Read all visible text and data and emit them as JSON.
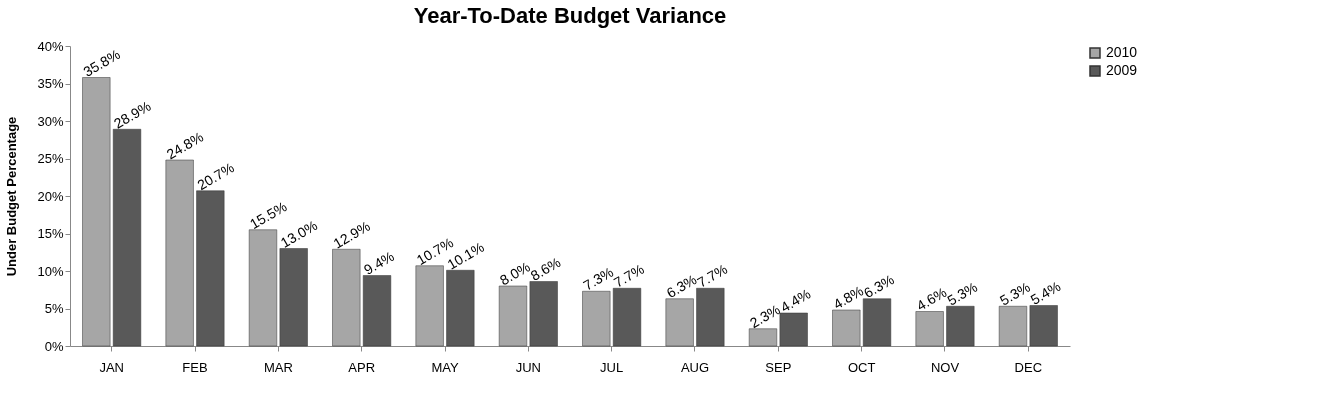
{
  "chart_data": {
    "type": "bar",
    "title": "Year-To-Date Budget Variance",
    "ylabel": "Under Budget Percentage",
    "categories": [
      "JAN",
      "FEB",
      "MAR",
      "APR",
      "MAY",
      "JUN",
      "JUL",
      "AUG",
      "SEP",
      "OCT",
      "NOV",
      "DEC"
    ],
    "series": [
      {
        "name": "2010",
        "color": "#a6a6a6",
        "values": [
          35.8,
          24.8,
          15.5,
          12.9,
          10.7,
          8.0,
          7.3,
          6.3,
          2.3,
          4.8,
          4.6,
          5.3
        ],
        "value_labels": [
          "35.8%",
          "24.8%",
          "15.5%",
          "12.9%",
          "10.7%",
          "8.0%",
          "7.3%",
          "6.3%",
          "2.3%",
          "4.8%",
          "4.6%",
          "5.3%"
        ]
      },
      {
        "name": "2009",
        "color": "#595959",
        "values": [
          28.9,
          20.7,
          13.0,
          9.4,
          10.1,
          8.6,
          7.7,
          7.7,
          4.4,
          6.3,
          5.3,
          5.4
        ],
        "value_labels": [
          "28.9%",
          "20.7%",
          "13.0%",
          "9.4%",
          "10.1%",
          "8.6%",
          "7.7%",
          "7.7%",
          "4.4%",
          "6.3%",
          "5.3%",
          "5.4%"
        ]
      }
    ],
    "ylim": [
      0,
      40
    ],
    "yticks": [
      {
        "value": 0,
        "label": "0%"
      },
      {
        "value": 5,
        "label": "5%"
      },
      {
        "value": 10,
        "label": "10%"
      },
      {
        "value": 15,
        "label": "15%"
      },
      {
        "value": 20,
        "label": "20%"
      },
      {
        "value": 25,
        "label": "25%"
      },
      {
        "value": 30,
        "label": "30%"
      },
      {
        "value": 35,
        "label": "35%"
      },
      {
        "value": 40,
        "label": "40%"
      }
    ],
    "grid": false,
    "legend": "right"
  }
}
